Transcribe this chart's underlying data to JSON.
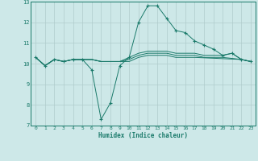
{
  "xlabel": "Humidex (Indice chaleur)",
  "x": [
    0,
    1,
    2,
    3,
    4,
    5,
    6,
    7,
    8,
    9,
    10,
    11,
    12,
    13,
    14,
    15,
    16,
    17,
    18,
    19,
    20,
    21,
    22,
    23
  ],
  "line1": [
    10.3,
    9.9,
    10.2,
    10.1,
    10.2,
    10.2,
    9.7,
    7.3,
    8.1,
    9.9,
    10.3,
    12.0,
    12.8,
    12.8,
    12.2,
    11.6,
    11.5,
    11.1,
    10.9,
    10.7,
    10.4,
    10.5,
    10.2,
    10.1
  ],
  "line2_x": [
    0,
    1,
    2,
    3,
    4,
    5,
    6,
    7,
    8,
    9,
    10,
    11,
    12,
    13,
    14,
    15,
    16,
    17,
    18,
    19,
    20,
    21,
    22,
    23
  ],
  "line2": [
    10.3,
    9.9,
    10.2,
    10.1,
    10.2,
    10.2,
    10.2,
    10.1,
    10.1,
    10.1,
    10.3,
    10.5,
    10.6,
    10.6,
    10.6,
    10.5,
    10.5,
    10.5,
    10.4,
    10.4,
    10.4,
    10.5,
    10.2,
    10.1
  ],
  "line3_x": [
    0,
    1,
    2,
    3,
    4,
    5,
    6,
    7,
    8,
    9,
    10,
    11,
    12,
    13,
    14,
    15,
    16,
    17,
    18,
    19,
    20,
    22,
    23
  ],
  "line3": [
    10.3,
    9.9,
    10.2,
    10.1,
    10.2,
    10.2,
    10.2,
    10.1,
    10.1,
    10.1,
    10.2,
    10.4,
    10.5,
    10.5,
    10.5,
    10.4,
    10.4,
    10.4,
    10.3,
    10.3,
    10.3,
    10.2,
    10.1
  ],
  "line4_x": [
    0,
    1,
    2,
    3,
    4,
    5,
    6,
    7,
    8,
    9,
    10,
    11,
    12,
    13,
    14,
    15,
    16,
    17,
    22,
    23
  ],
  "line4": [
    10.3,
    9.9,
    10.2,
    10.1,
    10.2,
    10.2,
    10.2,
    10.1,
    10.1,
    10.1,
    10.1,
    10.3,
    10.4,
    10.4,
    10.4,
    10.3,
    10.3,
    10.3,
    10.2,
    10.1
  ],
  "line_color": "#1a7a6a",
  "bg_color": "#cde8e8",
  "grid_color": "#b0cccc",
  "ylim": [
    7,
    13
  ],
  "xlim": [
    -0.5,
    23.5
  ],
  "yticks": [
    7,
    8,
    9,
    10,
    11,
    12,
    13
  ],
  "xticks": [
    0,
    1,
    2,
    3,
    4,
    5,
    6,
    7,
    8,
    9,
    10,
    11,
    12,
    13,
    14,
    15,
    16,
    17,
    18,
    19,
    20,
    21,
    22,
    23
  ]
}
